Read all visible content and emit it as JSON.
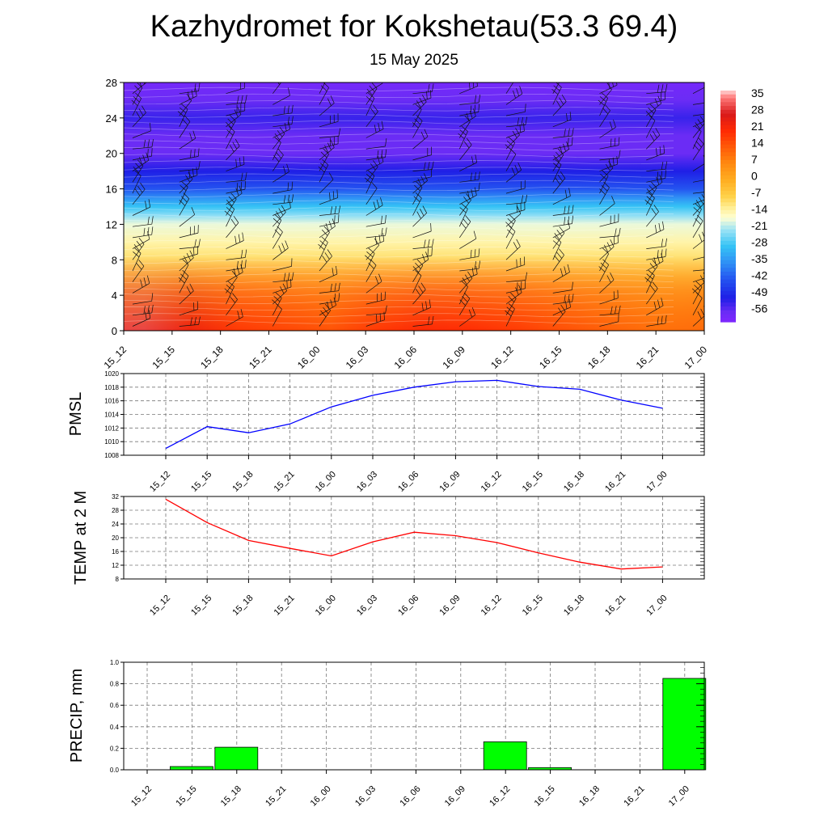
{
  "header": {
    "title": "Kazhydromet for Kokshetau(53.3 69.4)",
    "date": "15 May 2025"
  },
  "chart_data": [
    {
      "type": "heatmap",
      "title": "",
      "x_labels": [
        "15_12",
        "15_15",
        "15_18",
        "15_21",
        "16_00",
        "16_03",
        "16_06",
        "16_09",
        "16_12",
        "16_15",
        "16_18",
        "16_21",
        "17_00"
      ],
      "y_ticks": [
        0,
        4,
        8,
        12,
        16,
        20,
        24,
        28
      ],
      "ylim": [
        0,
        28
      ],
      "colorbar": {
        "labels": [
          35,
          28,
          21,
          14,
          7,
          0,
          -7,
          -14,
          -21,
          -28,
          -35,
          -42,
          -49,
          -56
        ],
        "range": [
          -60,
          38
        ]
      },
      "surface_temp_by_time": [
        31,
        24,
        19,
        17,
        15,
        19,
        21.5,
        20.5,
        18.5,
        15.5,
        13,
        11,
        11.5
      ],
      "temp_profile_by_height": [
        {
          "h": 0,
          "t": 0
        },
        {
          "h": 2,
          "t": 0
        },
        {
          "h": 4,
          "t": -2
        },
        {
          "h": 6,
          "t": -5
        },
        {
          "h": 8,
          "t": -9
        },
        {
          "h": 10,
          "t": -13
        },
        {
          "h": 12,
          "t": -17
        },
        {
          "h": 13,
          "t": -22
        },
        {
          "h": 14,
          "t": -28
        },
        {
          "h": 15,
          "t": -35
        },
        {
          "h": 16,
          "t": -42
        },
        {
          "h": 18,
          "t": -50
        },
        {
          "h": 20,
          "t": -56
        },
        {
          "h": 22,
          "t": -56
        },
        {
          "h": 24,
          "t": -52
        },
        {
          "h": 26,
          "t": -56
        },
        {
          "h": 28,
          "t": -58
        }
      ],
      "wind_barbs": "present at every time step and level"
    },
    {
      "type": "line",
      "ylabel": "PMSL",
      "categories": [
        "15_12",
        "15_15",
        "15_18",
        "15_21",
        "16_00",
        "16_03",
        "16_06",
        "16_09",
        "16_12",
        "16_15",
        "16_18",
        "16_21",
        "17_00"
      ],
      "series": [
        {
          "values": [
            1009.0,
            1012.2,
            1011.3,
            1012.6,
            1015.1,
            1016.8,
            1018.0,
            1018.8,
            1019.0,
            1018.1,
            1017.7,
            1016.1,
            1014.9
          ]
        }
      ],
      "yticks": [
        1008,
        1010,
        1012,
        1014,
        1016,
        1018,
        1020
      ],
      "ylim": [
        1008,
        1020
      ],
      "color": "#0000ff",
      "grid": true
    },
    {
      "type": "line",
      "ylabel": "TEMP at 2 M",
      "categories": [
        "15_12",
        "15_15",
        "15_18",
        "15_21",
        "16_00",
        "16_03",
        "16_06",
        "16_09",
        "16_12",
        "16_15",
        "16_18",
        "16_21",
        "17_00"
      ],
      "series": [
        {
          "values": [
            31.2,
            24.4,
            19.2,
            16.9,
            14.7,
            18.8,
            21.6,
            20.6,
            18.6,
            15.6,
            12.9,
            10.9,
            11.5
          ]
        }
      ],
      "yticks": [
        8,
        12,
        16,
        20,
        24,
        28,
        32
      ],
      "ylim": [
        8,
        32
      ],
      "color": "#ff0000",
      "grid": true
    },
    {
      "type": "bar",
      "ylabel": "PRECIP, mm",
      "categories": [
        "15_12",
        "15_15",
        "15_18",
        "15_21",
        "16_00",
        "16_03",
        "16_06",
        "16_09",
        "16_12",
        "16_15",
        "16_18",
        "16_21",
        "17_00"
      ],
      "values": [
        0,
        0.03,
        0.21,
        0,
        0,
        0,
        0,
        0,
        0.26,
        0.02,
        0,
        0,
        0.85
      ],
      "yticks": [
        "0.0",
        "0.2",
        "0.4",
        "0.6",
        "0.8",
        "1.0"
      ],
      "ylim": [
        0,
        1.0
      ],
      "color": "#00ff00",
      "grid": true
    }
  ]
}
